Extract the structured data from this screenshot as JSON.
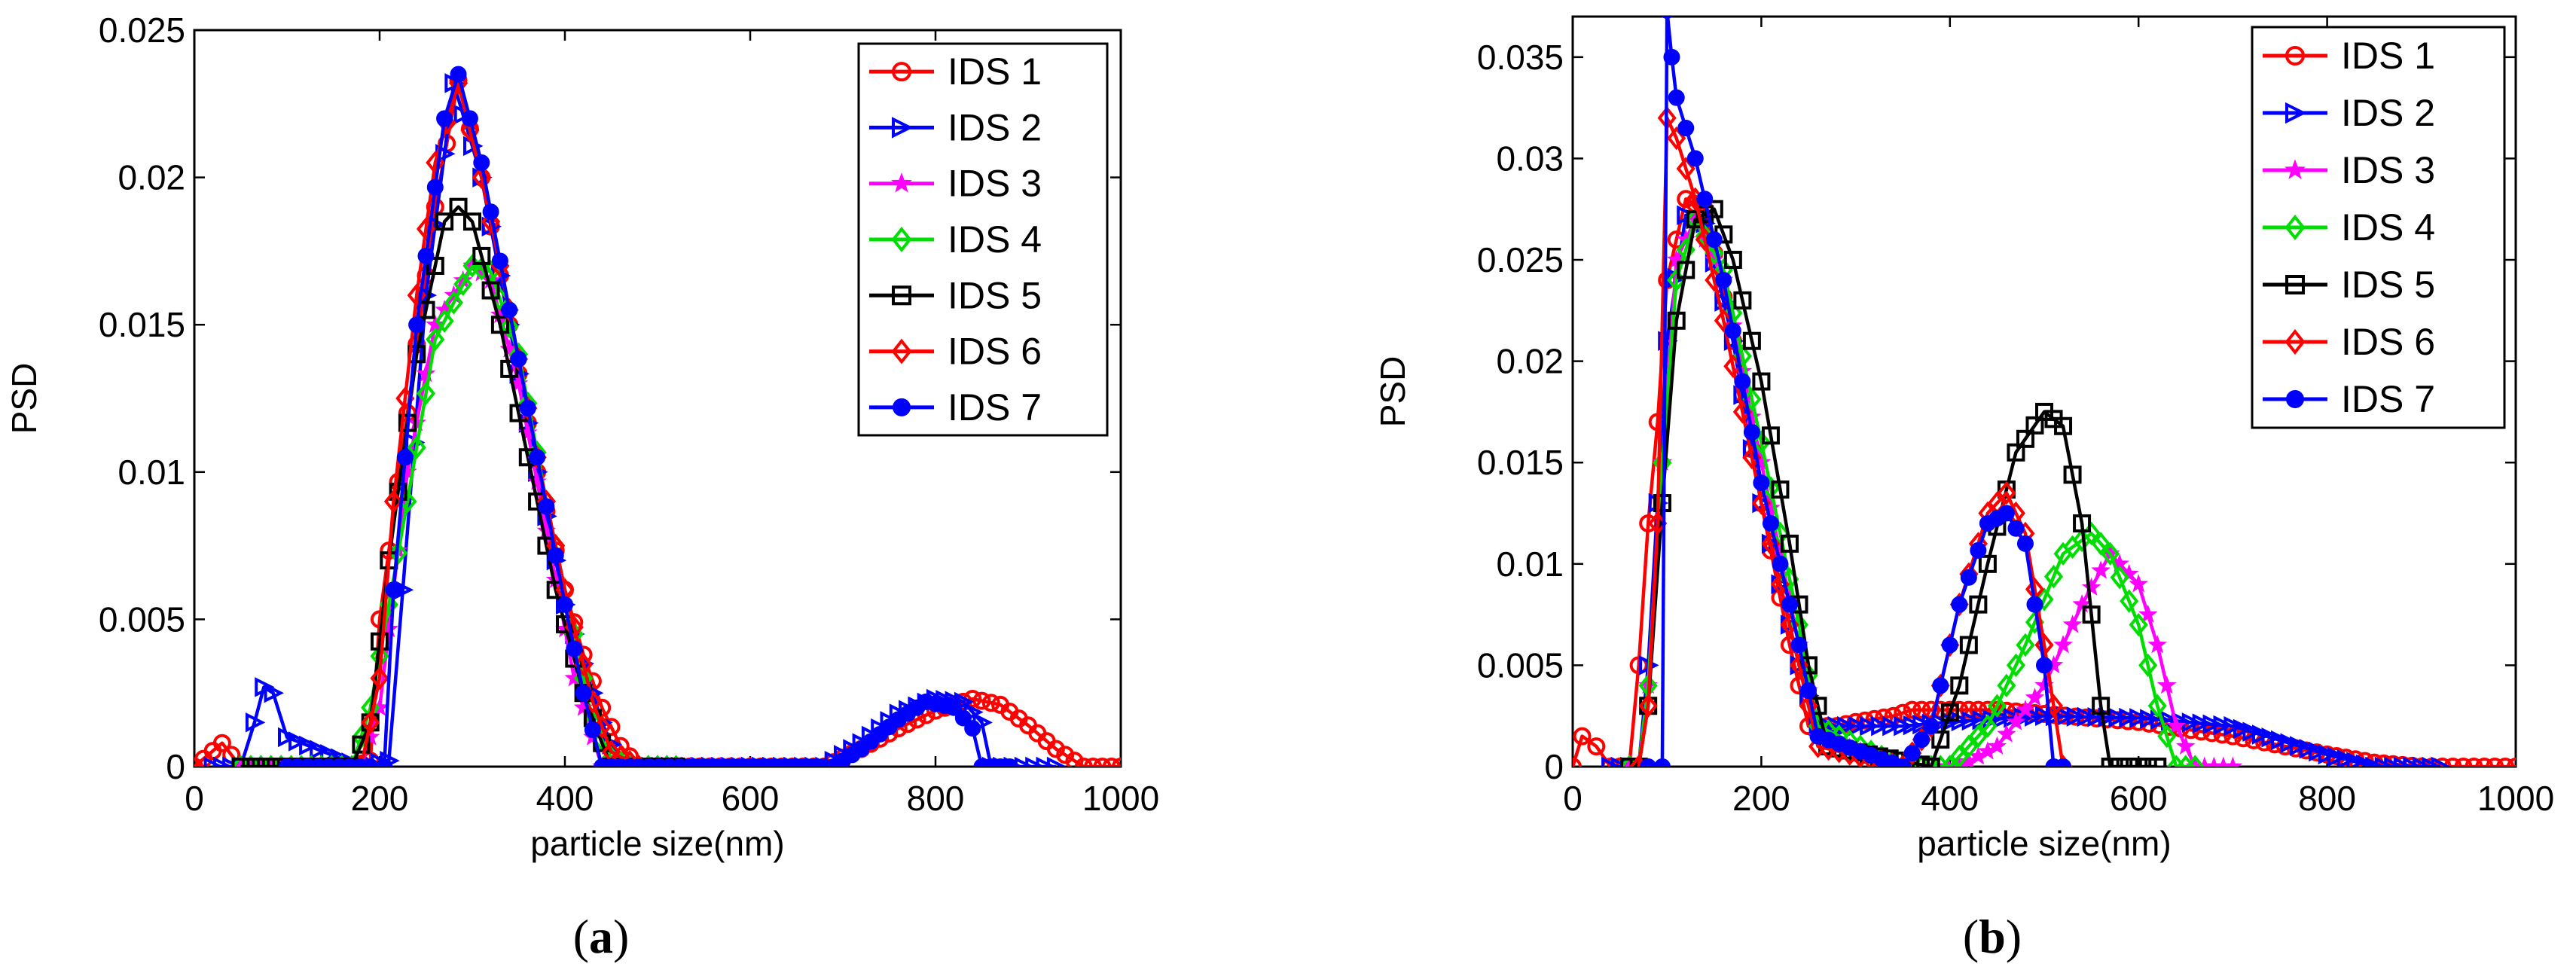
{
  "colors": {
    "red": "#ff0000",
    "blue": "#0000ff",
    "magenta": "#ff00ff",
    "green": "#00dd00",
    "black": "#000000"
  },
  "chart_data": [
    {
      "type": "line",
      "panel_label": "a",
      "xlabel": "particle size(nm)",
      "ylabel": "PSD",
      "xlim": [
        0,
        1000
      ],
      "ylim": [
        0,
        0.025
      ],
      "xticks": [
        "0",
        "200",
        "400",
        "600",
        "800",
        "1000"
      ],
      "yticks": [
        "0",
        "0.005",
        "0.01",
        "0.015",
        "0.02",
        "0.025"
      ],
      "legend_position": "top-right",
      "series": [
        {
          "name": "IDS 1",
          "color": "#ff0000",
          "marker": "circle",
          "x": [
            0,
            30,
            50,
            100,
            170,
            190,
            200,
            230,
            260,
            285,
            310,
            340,
            370,
            400,
            420,
            440,
            460,
            480,
            600,
            680,
            720,
            760,
            800,
            840,
            870,
            900,
            930,
            960,
            1000
          ],
          "y": [
            0,
            0.0008,
            0,
            0,
            0,
            0.0002,
            0.005,
            0.012,
            0.019,
            0.0233,
            0.02,
            0.015,
            0.01,
            0.006,
            0.0038,
            0.002,
            0.0007,
            0,
            0,
            0,
            0.0006,
            0.0013,
            0.0019,
            0.0023,
            0.0021,
            0.0014,
            0.0006,
            0,
            0
          ]
        },
        {
          "name": "IDS 2",
          "color": "#0000ff",
          "marker": "triangle-right",
          "x": [
            20,
            50,
            65,
            75,
            85,
            100,
            180,
            210,
            225,
            250,
            280,
            310,
            340,
            370,
            400,
            420,
            440,
            460,
            600,
            680,
            720,
            760,
            800,
            830,
            850,
            860,
            930
          ],
          "y": [
            0,
            0,
            0.0015,
            0.0027,
            0.0025,
            0.001,
            0,
            0.0002,
            0.006,
            0.016,
            0.0232,
            0.02,
            0.015,
            0.01,
            0.0055,
            0.0035,
            0.0015,
            0,
            0,
            0,
            0.0008,
            0.0018,
            0.0023,
            0.0022,
            0.0015,
            0,
            0
          ]
        },
        {
          "name": "IDS 3",
          "color": "#ff00ff",
          "marker": "star",
          "x": [
            50,
            180,
            200,
            230,
            260,
            300,
            320,
            350,
            380,
            410,
            430,
            440,
            460,
            600
          ],
          "y": [
            0,
            0,
            0.002,
            0.01,
            0.015,
            0.017,
            0.0165,
            0.013,
            0.008,
            0.003,
            0.001,
            0,
            0,
            0
          ]
        },
        {
          "name": "IDS 4",
          "color": "#00dd00",
          "marker": "diamond",
          "x": [
            50,
            170,
            190,
            230,
            260,
            300,
            320,
            350,
            380,
            410,
            430,
            450,
            470,
            520
          ],
          "y": [
            0,
            0,
            0.002,
            0.009,
            0.0145,
            0.017,
            0.0168,
            0.014,
            0.009,
            0.0045,
            0.0015,
            0.0003,
            0,
            0
          ]
        },
        {
          "name": "IDS 5",
          "color": "#000000",
          "marker": "square",
          "x": [
            50,
            170,
            190,
            210,
            240,
            270,
            285,
            300,
            330,
            360,
            390,
            420,
            440,
            450,
            470,
            520
          ],
          "y": [
            0,
            0,
            0.0015,
            0.007,
            0.014,
            0.0185,
            0.019,
            0.0185,
            0.015,
            0.0105,
            0.006,
            0.0025,
            0.0008,
            0,
            0,
            0
          ]
        },
        {
          "name": "IDS 6",
          "color": "#ff0000",
          "marker": "diamond",
          "x": [
            180,
            200,
            215,
            240,
            260,
            285,
            310,
            340,
            370,
            400,
            430,
            450,
            480
          ],
          "y": [
            0,
            0.003,
            0.009,
            0.016,
            0.0205,
            0.0232,
            0.02,
            0.0155,
            0.0105,
            0.006,
            0.0022,
            0.0005,
            0
          ]
        },
        {
          "name": "IDS 7",
          "color": "#0000ff",
          "marker": "circle-filled",
          "x": [
            100,
            190,
            205,
            215,
            240,
            270,
            285,
            310,
            340,
            370,
            400,
            420,
            440,
            480,
            600,
            690,
            720,
            760,
            790,
            820,
            840,
            850,
            880
          ],
          "y": [
            0,
            0,
            0,
            0.006,
            0.015,
            0.022,
            0.0235,
            0.0205,
            0.0155,
            0.0105,
            0.0055,
            0.0025,
            0,
            0,
            0,
            0,
            0.0006,
            0.0016,
            0.0022,
            0.002,
            0.0013,
            0,
            0
          ]
        }
      ]
    },
    {
      "type": "line",
      "panel_label": "b",
      "xlabel": "particle size(nm)",
      "ylabel": "PSD",
      "xlim": [
        0,
        1000
      ],
      "ylim": [
        0,
        0.037
      ],
      "xticks": [
        "0",
        "200",
        "400",
        "600",
        "800",
        "1000"
      ],
      "yticks": [
        "0",
        "0.005",
        "0.01",
        "0.015",
        "0.02",
        "0.025",
        "0.03",
        "0.035"
      ],
      "legend_position": "top-right",
      "series": [
        {
          "name": "IDS 1",
          "color": "#ff0000",
          "marker": "circle",
          "x": [
            0,
            10,
            25,
            40,
            60,
            70,
            80,
            90,
            100,
            120,
            140,
            170,
            200,
            230,
            250,
            280,
            300,
            340,
            360,
            400,
            450,
            500,
            600,
            700,
            800,
            850,
            900,
            1000
          ],
          "y": [
            0,
            0.0015,
            0.001,
            0,
            0,
            0.005,
            0.012,
            0.017,
            0.024,
            0.028,
            0.0275,
            0.021,
            0.013,
            0.006,
            0.002,
            0.002,
            0.0022,
            0.0025,
            0.0028,
            0.0028,
            0.0028,
            0.0026,
            0.0022,
            0.0015,
            0.0006,
            0.0002,
            0,
            0
          ]
        },
        {
          "name": "IDS 2",
          "color": "#0000ff",
          "marker": "triangle-right",
          "x": [
            40,
            70,
            80,
            90,
            100,
            120,
            140,
            170,
            200,
            240,
            260,
            290,
            350,
            400,
            500,
            600,
            700,
            750,
            800,
            850,
            880,
            920
          ],
          "y": [
            0,
            0,
            0.005,
            0.013,
            0.021,
            0.0272,
            0.0268,
            0.021,
            0.013,
            0.005,
            0.002,
            0.002,
            0.002,
            0.0022,
            0.0025,
            0.0024,
            0.002,
            0.0013,
            0.0006,
            0,
            0,
            0
          ]
        },
        {
          "name": "IDS 3",
          "color": "#ff00ff",
          "marker": "star",
          "x": [
            60,
            70,
            80,
            95,
            110,
            130,
            160,
            200,
            240,
            260,
            350,
            410,
            450,
            500,
            540,
            570,
            600,
            620,
            640,
            660,
            700
          ],
          "y": [
            0,
            0,
            0.004,
            0.015,
            0.025,
            0.027,
            0.024,
            0.015,
            0.006,
            0.0015,
            0,
            0,
            0.001,
            0.004,
            0.008,
            0.0105,
            0.009,
            0.006,
            0.002,
            0,
            0
          ]
        },
        {
          "name": "IDS 4",
          "color": "#00dd00",
          "marker": "diamond",
          "x": [
            60,
            70,
            80,
            95,
            110,
            130,
            160,
            200,
            240,
            260,
            350,
            400,
            440,
            480,
            520,
            550,
            570,
            600,
            620,
            640,
            660
          ],
          "y": [
            0,
            0,
            0.004,
            0.015,
            0.024,
            0.027,
            0.0245,
            0.016,
            0.007,
            0.002,
            0,
            0,
            0.002,
            0.006,
            0.0105,
            0.0115,
            0.0105,
            0.007,
            0.003,
            0,
            0
          ]
        },
        {
          "name": "IDS 5",
          "color": "#000000",
          "marker": "square",
          "x": [
            60,
            70,
            80,
            95,
            110,
            130,
            150,
            170,
            200,
            230,
            250,
            270,
            380,
            410,
            440,
            470,
            500,
            520,
            540,
            560,
            570,
            620
          ],
          "y": [
            0,
            0,
            0.003,
            0.013,
            0.022,
            0.027,
            0.0275,
            0.025,
            0.019,
            0.011,
            0.005,
            0.001,
            0,
            0.004,
            0.01,
            0.0155,
            0.0175,
            0.0168,
            0.012,
            0.003,
            0,
            0
          ]
        },
        {
          "name": "IDS 6",
          "color": "#ff0000",
          "marker": "diamond",
          "x": [
            70,
            80,
            90,
            100,
            110,
            130,
            160,
            200,
            240,
            260,
            350,
            380,
            410,
            440,
            460,
            480,
            500,
            520
          ],
          "y": [
            0,
            0.003,
            0.012,
            0.032,
            0.031,
            0.028,
            0.022,
            0.013,
            0.005,
            0.001,
            0,
            0.002,
            0.008,
            0.0125,
            0.0135,
            0.0115,
            0.006,
            0
          ]
        },
        {
          "name": "IDS 7",
          "color": "#0000ff",
          "marker": "circle-filled",
          "x": [
            80,
            95,
            100,
            105,
            110,
            130,
            160,
            200,
            240,
            260,
            350,
            380,
            410,
            440,
            460,
            480,
            500,
            510,
            520
          ],
          "y": [
            0,
            0,
            0.0373,
            0.035,
            0.033,
            0.03,
            0.024,
            0.014,
            0.006,
            0.0015,
            0,
            0.002,
            0.008,
            0.012,
            0.0125,
            0.011,
            0.005,
            0,
            0
          ]
        }
      ]
    }
  ],
  "captions": [
    {
      "open": "(",
      "label": "a",
      "close": ")"
    },
    {
      "open": "(",
      "label": "b",
      "close": ")"
    }
  ]
}
